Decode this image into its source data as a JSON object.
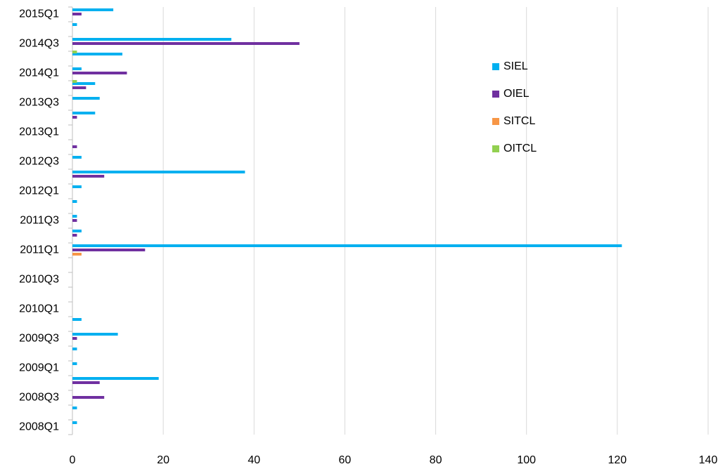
{
  "chart_data": {
    "type": "hbar",
    "categories": [
      "2008Q1",
      null,
      "2008Q3",
      null,
      "2009Q1",
      null,
      "2009Q3",
      null,
      "2010Q1",
      null,
      "2010Q3",
      null,
      "2011Q1",
      null,
      "2011Q3",
      null,
      "2012Q1",
      null,
      "2012Q3",
      null,
      "2013Q1",
      null,
      "2013Q3",
      null,
      "2014Q1",
      null,
      "2014Q3",
      null,
      "2015Q1"
    ],
    "series": [
      {
        "name": "SIEL",
        "color": "#00b0f0",
        "values": [
          1,
          1,
          0,
          19,
          1,
          1,
          10,
          2,
          0,
          0,
          0,
          0,
          121,
          2,
          1,
          1,
          2,
          38,
          2,
          0,
          0,
          5,
          6,
          5,
          2,
          11,
          35,
          1,
          9
        ]
      },
      {
        "name": "OIEL",
        "color": "#7030a0",
        "values": [
          0,
          0,
          7,
          6,
          0,
          0,
          1,
          0,
          0,
          0,
          0,
          0,
          16,
          1,
          1,
          0,
          0,
          7,
          0,
          1,
          0,
          1,
          0,
          3,
          12,
          0,
          50,
          0,
          2
        ]
      },
      {
        "name": "SITCL",
        "color": "#f79646",
        "values": [
          0,
          0,
          0,
          0,
          0,
          0,
          0,
          0,
          0,
          0,
          0,
          0,
          2,
          0,
          0,
          0,
          0,
          0,
          0,
          0,
          0,
          0,
          0,
          0,
          0,
          0,
          0,
          0,
          0
        ]
      },
      {
        "name": "OITCL",
        "color": "#92d050",
        "values": [
          0,
          0,
          0,
          0,
          0,
          0,
          0,
          0,
          0,
          0,
          0,
          0,
          0,
          0,
          0,
          0,
          0,
          0,
          0,
          0,
          0,
          0,
          0,
          0,
          1,
          0,
          1,
          0,
          0
        ]
      }
    ],
    "xlim": [
      0,
      140
    ],
    "xticks": [
      0,
      20,
      40,
      60,
      80,
      100,
      120,
      140
    ],
    "grid": true,
    "legend": "upper-right"
  }
}
